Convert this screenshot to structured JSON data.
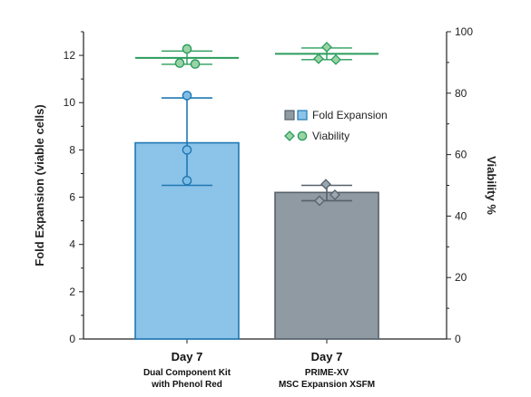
{
  "chart_data": {
    "type": "bar",
    "title": "",
    "categories": [
      {
        "main": "Day 7",
        "sub1": "Dual Component Kit",
        "sub2": "with Phenol Red"
      },
      {
        "main": "Day 7",
        "sub1": "PRIME-XV",
        "sub2": "MSC Expansion XSFM"
      }
    ],
    "ylabel_left": "Fold Expansion (viable cells)",
    "ylabel_right": "Viability %",
    "ylim_left": [
      0,
      13
    ],
    "ylim_right": [
      0,
      100
    ],
    "yticks_left": [
      0,
      2,
      4,
      6,
      8,
      10,
      12
    ],
    "yticks_right": [
      0,
      20,
      40,
      60,
      80,
      100
    ],
    "grid": false,
    "legend_position": "right-center",
    "series": [
      {
        "name": "Fold Expansion",
        "axis": "left",
        "kind": "bar",
        "values": [
          8.3,
          6.2
        ],
        "error_low": [
          6.5,
          5.85
        ],
        "error_high": [
          10.2,
          6.5
        ],
        "points": [
          [
            10.3,
            8.0,
            6.7
          ],
          [
            6.55,
            5.85,
            6.1
          ]
        ]
      },
      {
        "name": "Viability",
        "axis": "right",
        "kind": "mean-line",
        "values": [
          91.5,
          92.8
        ],
        "error_low": [
          89.4,
          90.9
        ],
        "error_high": [
          93.7,
          94.7
        ],
        "points": [
          [
            94.4,
            89.8,
            89.5
          ],
          [
            95.0,
            91.2,
            90.9
          ]
        ]
      }
    ],
    "colors": {
      "bar_fill_1": "#8cc3e8",
      "bar_stroke_1": "#1f78b4",
      "bar_fill_2": "#8f9aa3",
      "bar_stroke_2": "#56616b",
      "viability_line": "#2a9d5c",
      "viability_marker_fill": "#9ad4a6",
      "fold_point_fill_1": "#7fbde6",
      "fold_point_fill_2": "#9aa6b0"
    }
  }
}
